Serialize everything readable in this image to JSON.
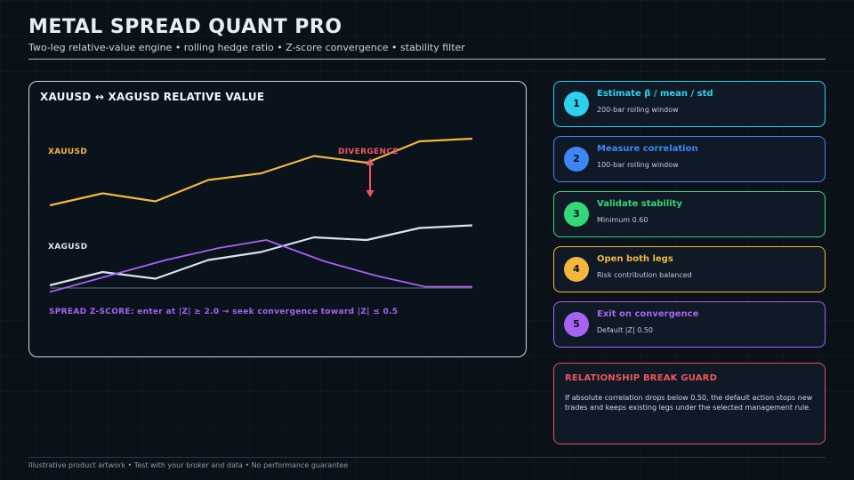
{
  "header": {
    "title": "METAL SPREAD QUANT PRO",
    "subtitle": "Two-leg relative-value engine • rolling hedge ratio • Z-score convergence • stability filter"
  },
  "chart": {
    "title": "XAUUSD ↔ XAGUSD RELATIVE VALUE",
    "label_xau": "XAUUSD",
    "label_xag": "XAGUSD",
    "label_divergence": "DIVERGENCE",
    "zscore_text": "SPREAD Z-SCORE: enter at |Z| ≥ 2.0 → seek convergence toward |Z| ≤ 0.5"
  },
  "chart_data": {
    "type": "line",
    "title": "XAUUSD ↔ XAGUSD RELATIVE VALUE",
    "x": [
      0,
      1,
      2,
      3,
      4,
      5,
      6,
      7,
      8
    ],
    "series": [
      {
        "name": "XAUUSD",
        "color": "#f4b63f",
        "x": [
          0,
          1,
          2,
          3,
          4,
          5,
          6,
          7,
          8
        ],
        "values": [
          20,
          29,
          23,
          39,
          44,
          57,
          52,
          68,
          70
        ]
      },
      {
        "name": "XAGUSD",
        "color": "#dbe3ea",
        "x": [
          0,
          1,
          2,
          3,
          4,
          5,
          6,
          7,
          8
        ],
        "values": [
          -40,
          -30,
          -35,
          -21,
          -15,
          -4,
          -6,
          3,
          5
        ]
      },
      {
        "name": "SPREAD Z-SCORE",
        "color": "#a663f2",
        "x": [
          0,
          1.1,
          2.2,
          3.2,
          4.1,
          5.2,
          6.2,
          7.1,
          8
        ],
        "values": [
          -0.3,
          0.9,
          2.1,
          3.0,
          3.6,
          2.0,
          0.9,
          0.1,
          0.1
        ]
      }
    ],
    "reference_line": {
      "value": 0,
      "color": "#64718a"
    },
    "annotation": {
      "text": "DIVERGENCE",
      "color": "#f0565f"
    },
    "grid": false
  },
  "steps": [
    {
      "number": "1",
      "title": "Estimate β / mean / std",
      "subtitle": "200-bar rolling window",
      "color": "#2fd0ee"
    },
    {
      "number": "2",
      "title": "Measure correlation",
      "subtitle": "100-bar rolling window",
      "color": "#3f86f4"
    },
    {
      "number": "3",
      "title": "Validate stability",
      "subtitle": "Minimum 0.60",
      "color": "#34d77a"
    },
    {
      "number": "4",
      "title": "Open both legs",
      "subtitle": "Risk contribution balanced",
      "color": "#f4b63f"
    },
    {
      "number": "5",
      "title": "Exit on convergence",
      "subtitle": "Default |Z| 0.50",
      "color": "#a663f2"
    }
  ],
  "guard": {
    "title": "RELATIONSHIP BREAK GUARD",
    "body": "If absolute correlation drops below 0.50, the default action stops new trades and keeps existing legs under the selected management rule.",
    "color": "#f0565f"
  },
  "footer": {
    "text": "Illustrative product artwork • Test with your broker and data • No performance guarantee"
  }
}
